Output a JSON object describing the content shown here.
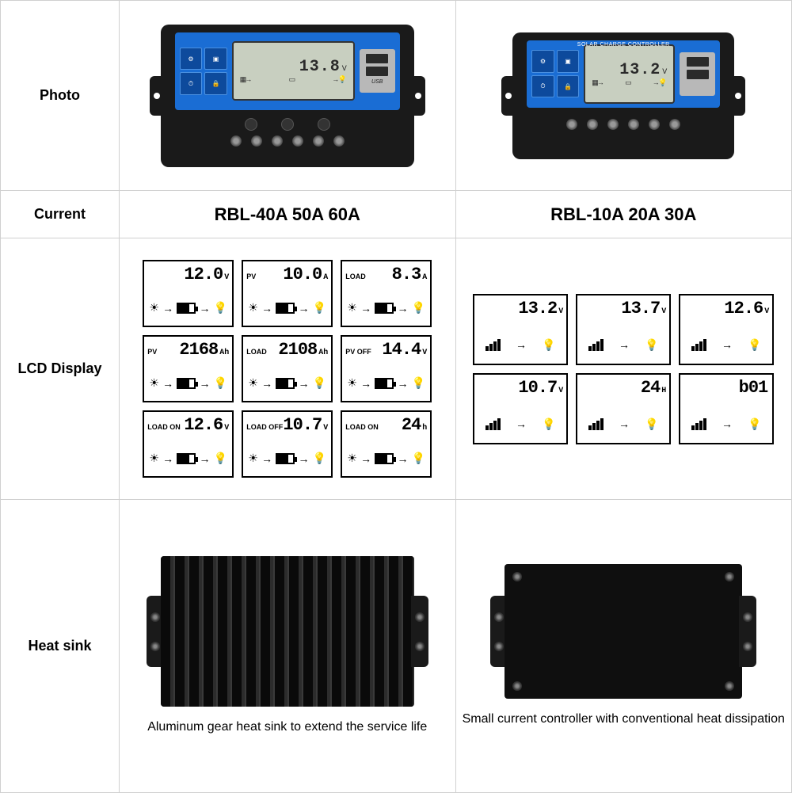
{
  "labels": {
    "photo": "Photo",
    "current": "Current",
    "lcd": "LCD Display",
    "heatsink": "Heat sink"
  },
  "products": {
    "large": {
      "current_models": "RBL-40A 50A 60A",
      "lcd_reading": "13.8",
      "lcd_unit": "V",
      "usb_label": "USB",
      "face_title": ""
    },
    "small": {
      "current_models": "RBL-10A 20A 30A",
      "lcd_reading": "13.2",
      "lcd_unit": "V",
      "usb_label": "",
      "face_title": "SOLAR CHARGE CONTROLLER"
    }
  },
  "lcd_large": [
    {
      "tag": "",
      "val": "12.0",
      "unit": "V"
    },
    {
      "tag": "PV",
      "val": "10.0",
      "unit": "A"
    },
    {
      "tag": "LOAD",
      "val": "8.3",
      "unit": "A"
    },
    {
      "tag": "PV",
      "val": "2168",
      "unit": "Ah"
    },
    {
      "tag": "LOAD",
      "val": "2108",
      "unit": "Ah"
    },
    {
      "tag": "PV OFF",
      "val": "14.4",
      "unit": "V"
    },
    {
      "tag": "LOAD ON",
      "val": "12.6",
      "unit": "V"
    },
    {
      "tag": "LOAD OFF",
      "val": "10.7",
      "unit": "V"
    },
    {
      "tag": "LOAD ON",
      "val": "24",
      "unit": "h"
    }
  ],
  "lcd_small": [
    {
      "tag": "",
      "val": "13.2",
      "unit": "V"
    },
    {
      "tag": "",
      "val": "13.7",
      "unit": "V"
    },
    {
      "tag": "",
      "val": "12.6",
      "unit": "V"
    },
    {
      "tag": "",
      "val": "10.7",
      "unit": "V"
    },
    {
      "tag": "",
      "val": "24",
      "unit": "H"
    },
    {
      "tag": "",
      "val": "b01",
      "unit": ""
    }
  ],
  "heatsink_captions": {
    "large": "Aluminum gear heat sink to extend the service life",
    "small": "Small current controller with conventional heat dissipation"
  },
  "colors": {
    "border": "#d0d0d0",
    "device_body": "#1a1a1a",
    "faceplate": "#1a6dd4",
    "lcd_bg": "#c8cfc0"
  }
}
